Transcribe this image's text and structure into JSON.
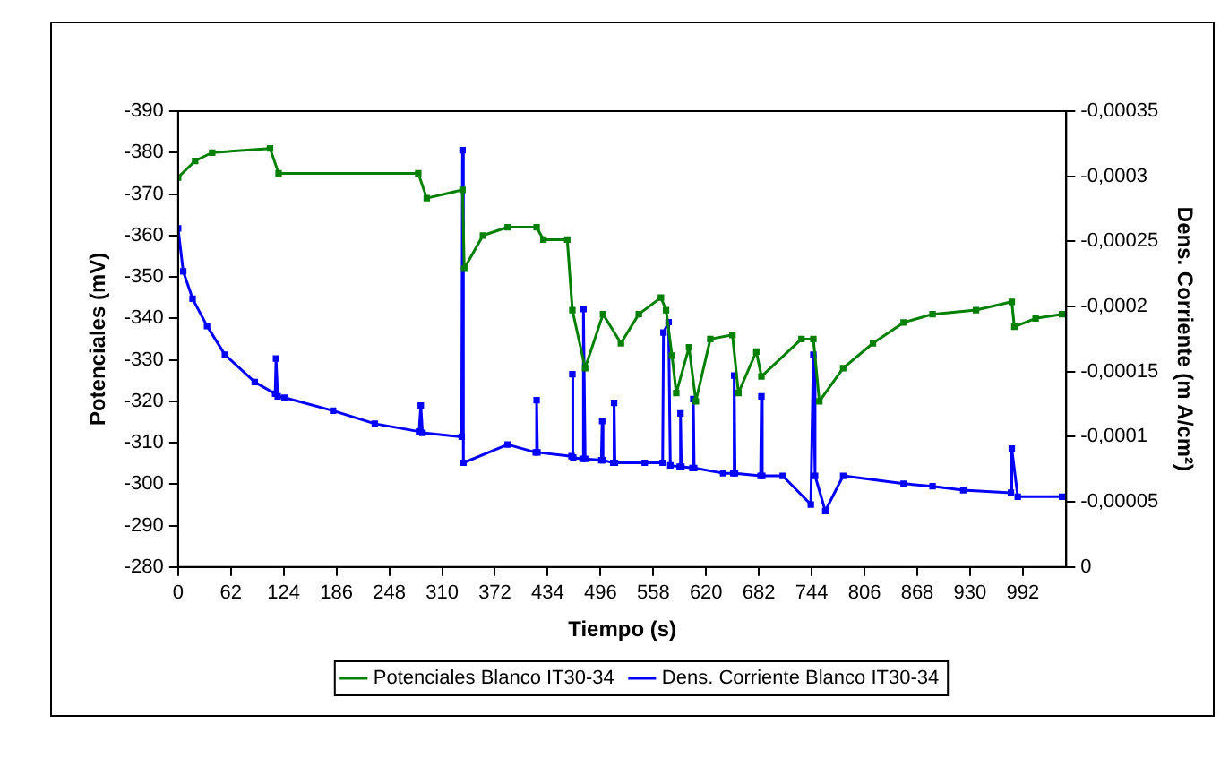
{
  "chart_data": {
    "type": "line",
    "xlabel": "Tiempo (s)",
    "ylabel": "Potenciales (mV)",
    "y2label": "Dens. Corriente (m A/cm²)",
    "xlim": [
      0,
      1043
    ],
    "xticks": [
      0,
      62,
      124,
      186,
      248,
      310,
      372,
      434,
      496,
      558,
      620,
      682,
      744,
      806,
      868,
      930,
      992
    ],
    "ylim": [
      -280,
      -390
    ],
    "yticks": [
      -280,
      -290,
      -300,
      -310,
      -320,
      -330,
      -340,
      -350,
      -360,
      -370,
      -380,
      -390
    ],
    "y2lim": [
      0,
      -0.00035
    ],
    "y2ticks": [
      0,
      {
        "value": -5e-05,
        "label": "-0,00005"
      },
      {
        "value": -0.0001,
        "label": "-0,0001"
      },
      {
        "value": -0.00015,
        "label": "-0,00015"
      },
      {
        "value": -0.0002,
        "label": "-0,0002"
      },
      {
        "value": -0.00025,
        "label": "-0,00025"
      },
      {
        "value": -0.0003,
        "label": "-0,0003"
      },
      {
        "value": -0.00035,
        "label": "-0,00035"
      }
    ],
    "grid": false,
    "legend": "bottom",
    "marker": "square",
    "line_style": "solid",
    "series": [
      {
        "name": "Potenciales Blanco IT30-34",
        "color": "#008000",
        "x": [
          0,
          20,
          40,
          108,
          118,
          282,
          292,
          334,
          336,
          358,
          387,
          421,
          429,
          457,
          463,
          478,
          499,
          520,
          541,
          567,
          573,
          580,
          585,
          600,
          608,
          625,
          651,
          658,
          679,
          685,
          732,
          746,
          753,
          781,
          816,
          852,
          886,
          937,
          979,
          982,
          1007,
          1038
        ],
        "values": [
          -374,
          -378,
          -380,
          -381,
          -375,
          -375,
          -369,
          -371,
          -352,
          -360,
          -362,
          -362,
          -359,
          -359,
          -342,
          -328,
          -341,
          -334,
          -341,
          -345,
          -342,
          -331,
          -322,
          -333,
          -320,
          -335,
          -336,
          -322,
          -332,
          -326,
          -335,
          -335,
          -320,
          -328,
          -334,
          -339,
          -341,
          -342,
          -344,
          -338,
          -340,
          -341
        ]
      },
      {
        "name": "Dens. Corriente Blanco IT30-34",
        "color": "#0000ff",
        "axis": "y2",
        "x": [
          0,
          6,
          17,
          34,
          55,
          90,
          114,
          115,
          117,
          125,
          182,
          231,
          283,
          285,
          287,
          333,
          334,
          335,
          387,
          420,
          421,
          422,
          462,
          463,
          464,
          475,
          476,
          478,
          497,
          498,
          499,
          511,
          512,
          513,
          548,
          569,
          570,
          576,
          578,
          589,
          590,
          591,
          604,
          605,
          606,
          640,
          652,
          653,
          654,
          684,
          685,
          686,
          710,
          743,
          746,
          748,
          760,
          781,
          852,
          886,
          922,
          978,
          979,
          986,
          1038
        ],
        "values": [
          -0.00026,
          -0.000227,
          -0.000206,
          -0.000185,
          -0.000163,
          -0.000142,
          -0.000133,
          -0.00016,
          -0.000131,
          -0.00013,
          -0.00012,
          -0.00011,
          -0.000104,
          -0.000124,
          -0.000103,
          -0.0001,
          -0.00032,
          -8e-05,
          -9.4e-05,
          -8.8e-05,
          -0.000128,
          -8.8e-05,
          -8.5e-05,
          -0.000148,
          -8.4e-05,
          -8.3e-05,
          -0.000198,
          -8.3e-05,
          -8.2e-05,
          -0.000112,
          -8.2e-05,
          -8e-05,
          -0.000126,
          -8e-05,
          -8e-05,
          -8e-05,
          -0.00018,
          -0.000188,
          -7.8e-05,
          -7.7e-05,
          -0.000118,
          -7.7e-05,
          -7.6e-05,
          -0.000129,
          -7.6e-05,
          -7.2e-05,
          -7.2e-05,
          -0.000147,
          -7.2e-05,
          -7e-05,
          -0.000131,
          -7e-05,
          -7e-05,
          -4.8e-05,
          -0.000163,
          -7e-05,
          -4.3e-05,
          -7e-05,
          -6.4e-05,
          -6.2e-05,
          -5.9e-05,
          -5.7e-05,
          -9.1e-05,
          -5.4e-05,
          -5.4e-05
        ]
      }
    ]
  }
}
